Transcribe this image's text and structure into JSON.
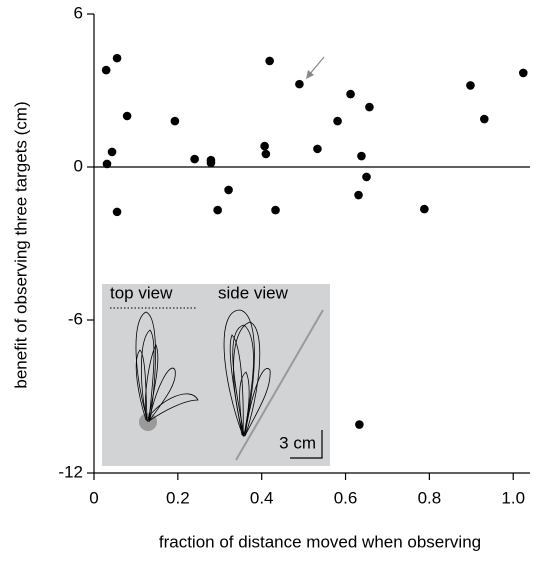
{
  "chart_data": {
    "type": "scatter",
    "x_label": "fraction of distance moved when observing",
    "y_label": "benefit of observing three targets (cm)",
    "x": [
      0.029,
      0.055,
      0.079,
      0.031,
      0.043,
      0.055,
      0.193,
      0.24,
      0.279,
      0.279,
      0.295,
      0.321,
      0.407,
      0.41,
      0.419,
      0.433,
      0.49,
      0.533,
      0.581,
      0.612,
      0.638,
      0.631,
      0.65,
      0.657,
      0.633,
      0.788,
      0.898,
      0.931,
      1.024
    ],
    "values": [
      3.8,
      4.27,
      2.0,
      0.12,
      0.59,
      -1.76,
      1.8,
      0.31,
      0.27,
      0.16,
      -1.69,
      -0.9,
      0.82,
      0.51,
      4.16,
      -1.69,
      3.25,
      0.71,
      1.8,
      2.86,
      0.43,
      -1.1,
      -0.39,
      2.35,
      -10.1,
      -1.65,
      3.2,
      1.88,
      3.69
    ],
    "color": "#000000",
    "xlim": [
      0,
      1.04
    ],
    "ylim": [
      -12,
      6
    ],
    "xticks": [
      0,
      0.2,
      0.4,
      0.6,
      0.8,
      {
        "value": 1,
        "label": "1.0"
      }
    ],
    "yticks": [
      6,
      0,
      -6,
      -12
    ],
    "reference_line": 0,
    "inset_labels": [
      "top view",
      "side view",
      "3 cm"
    ]
  }
}
